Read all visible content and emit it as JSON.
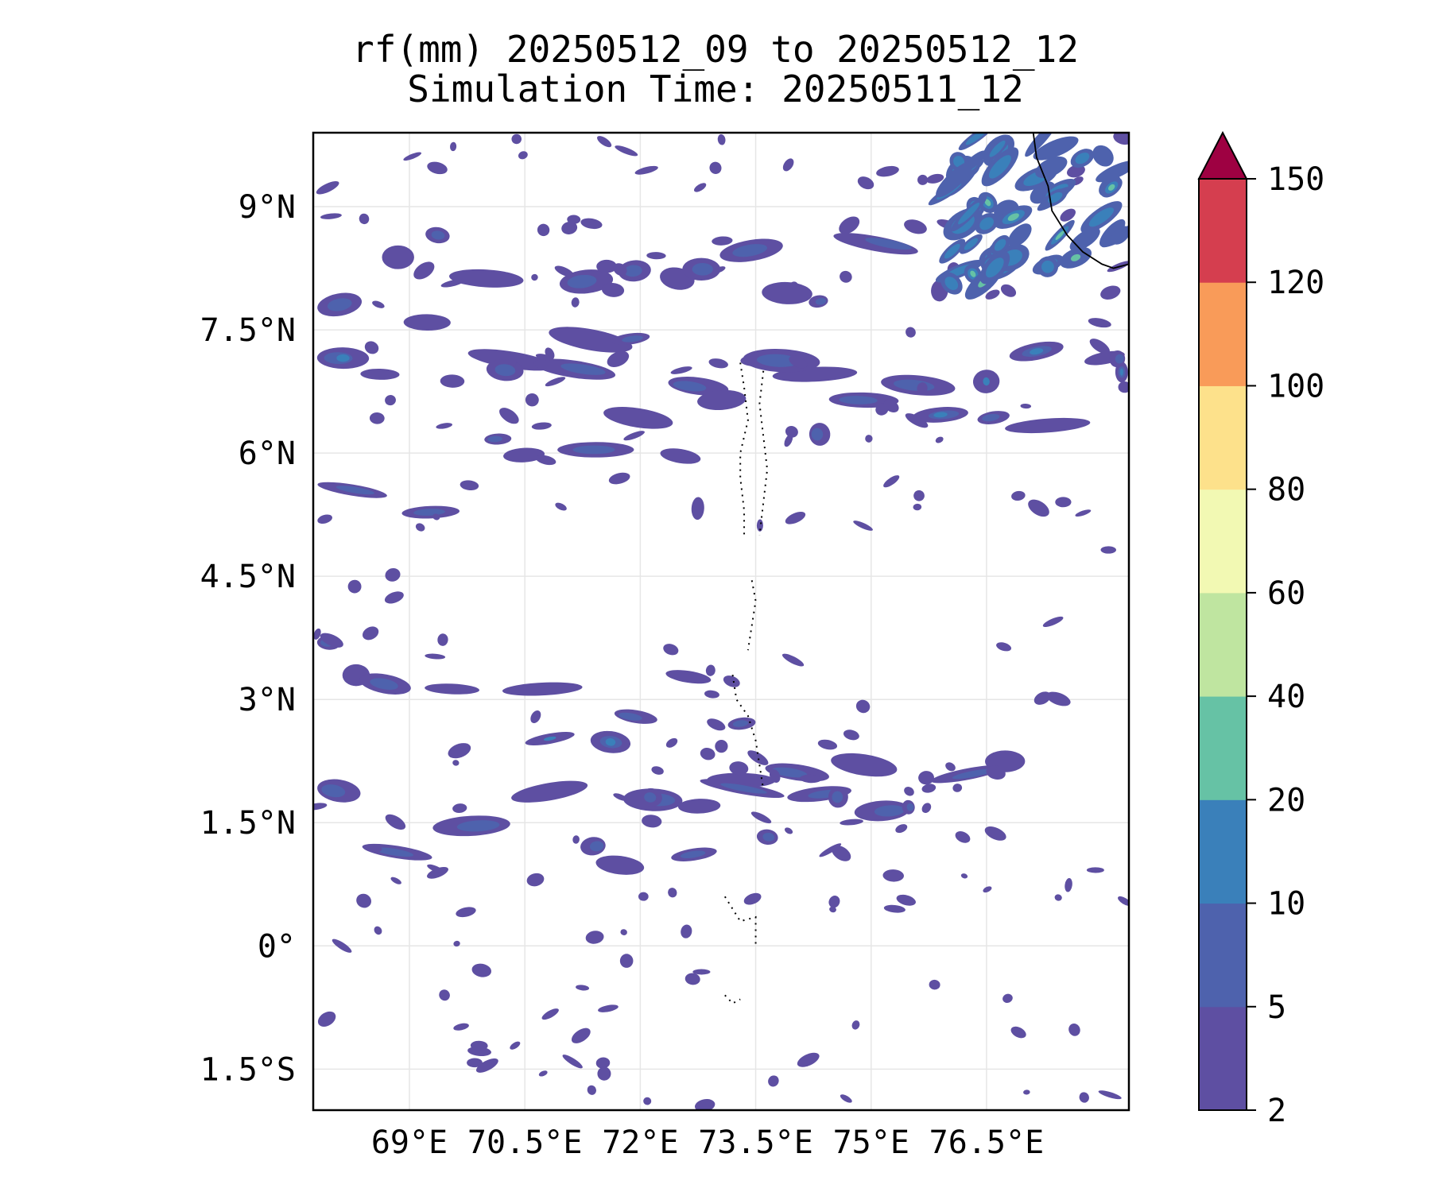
{
  "title": {
    "line1": "rf(mm) 20250512_09 to 20250512_12",
    "line2": "Simulation Time: 20250511_12"
  },
  "map": {
    "lon_range": [
      67.75,
      78.35
    ],
    "lat_range": [
      -2.0,
      9.9
    ],
    "x_ticks": [
      {
        "value": 69.0,
        "label": "69°E"
      },
      {
        "value": 70.5,
        "label": "70.5°E"
      },
      {
        "value": 72.0,
        "label": "72°E"
      },
      {
        "value": 73.5,
        "label": "73.5°E"
      },
      {
        "value": 75.0,
        "label": "75°E"
      },
      {
        "value": 76.5,
        "label": "76.5°E"
      }
    ],
    "y_ticks": [
      {
        "value": 9.0,
        "label": "9°N"
      },
      {
        "value": 7.5,
        "label": "7.5°N"
      },
      {
        "value": 6.0,
        "label": "6°N"
      },
      {
        "value": 4.5,
        "label": "4.5°N"
      },
      {
        "value": 3.0,
        "label": "3°N"
      },
      {
        "value": 1.5,
        "label": "1.5°N"
      },
      {
        "value": 0.0,
        "label": "0°"
      },
      {
        "value": -1.5,
        "label": "1.5°S"
      }
    ],
    "grid": true,
    "coastline_color": "#000000",
    "islands_style": "dotted"
  },
  "colorbar": {
    "extend": "max",
    "extend_color": "#9e0142",
    "levels": [
      "2",
      "5",
      "10",
      "20",
      "40",
      "60",
      "80",
      "100",
      "120",
      "150"
    ],
    "colors": [
      "#5e4fa2",
      "#4e62ad",
      "#3a80ba",
      "#66c2a5",
      "#bfe5a0",
      "#f2f9b3",
      "#fde18b",
      "#f99b59",
      "#d53e4f"
    ]
  },
  "chart_data": {
    "type": "contourf",
    "variable": "rf(mm)",
    "bands": [
      {
        "lat_center": 8.3,
        "lon_from": 67.8,
        "lon_to": 76.0,
        "max_class": "5-10"
      },
      {
        "lat_center": 7.3,
        "lon_from": 67.8,
        "lon_to": 78.3,
        "max_class": "10-20"
      },
      {
        "lat_center": 6.7,
        "lon_from": 70.0,
        "lon_to": 78.3,
        "max_class": "10-20"
      },
      {
        "lat_center": 5.8,
        "lon_from": 67.8,
        "lon_to": 72.8,
        "max_class": "5-10"
      },
      {
        "lat_center": 3.2,
        "lon_from": 67.8,
        "lon_to": 73.5,
        "max_class": "5-10"
      },
      {
        "lat_center": 2.2,
        "lon_from": 70.5,
        "lon_to": 77.0,
        "max_class": "10-20"
      },
      {
        "lat_center": 1.4,
        "lon_from": 67.8,
        "lon_to": 75.5,
        "max_class": "5-10"
      }
    ],
    "coast_region": {
      "lon_from": 76.0,
      "lon_to": 78.3,
      "lat_from": 8.0,
      "lat_to": 9.9,
      "max_class": "20-40"
    }
  }
}
